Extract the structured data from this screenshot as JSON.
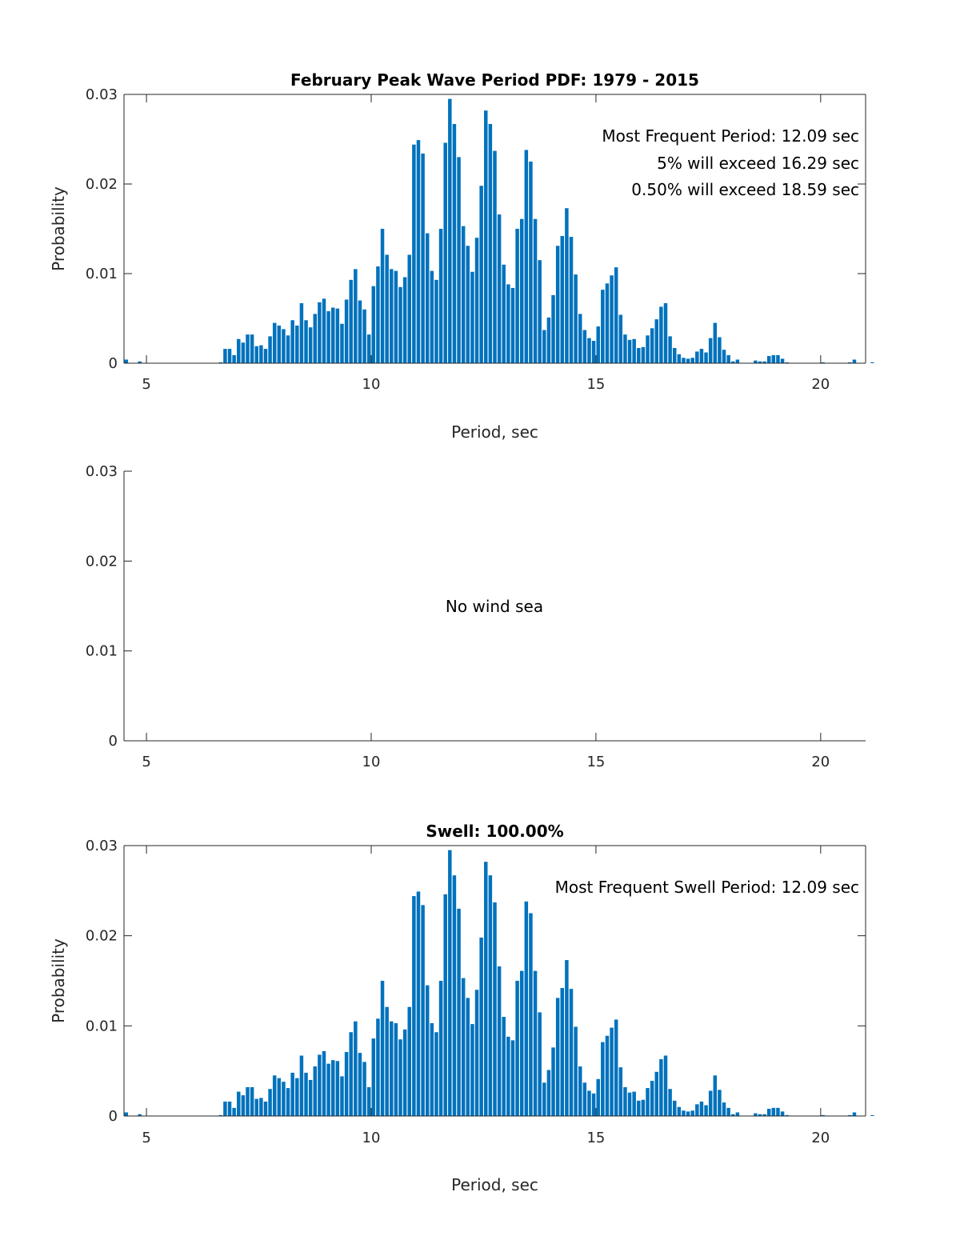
{
  "colors": {
    "bar": "#0072BD",
    "axis": "#262626",
    "background": "#ffffff"
  },
  "chart_data": [
    {
      "type": "bar",
      "title": "February Peak Wave Period PDF: 1979 - 2015",
      "xlabel": "Period, sec",
      "ylabel": "Probability",
      "xlim": [
        4.5,
        21
      ],
      "ylim": [
        0,
        0.03
      ],
      "xticks": [
        "5",
        "10",
        "15",
        "20"
      ],
      "yticks": [
        "0",
        "0.01",
        "0.02",
        "0.03"
      ],
      "bin_start": 4.55,
      "bin_width": 0.1,
      "values": [
        0.0004,
        0,
        0,
        0.0002,
        0,
        0,
        0,
        0,
        0,
        0,
        0,
        0,
        0,
        0,
        0,
        0,
        0,
        0,
        0,
        0,
        0,
        0.0001,
        0.0016,
        0.0016,
        0.0009,
        0.0027,
        0.0023,
        0.0032,
        0.0032,
        0.0019,
        0.002,
        0.0016,
        0.003,
        0.0045,
        0.0042,
        0.0038,
        0.0031,
        0.0048,
        0.0042,
        0.0067,
        0.0048,
        0.004,
        0.0055,
        0.0068,
        0.0072,
        0.0058,
        0.0062,
        0.0061,
        0.0044,
        0.0071,
        0.0093,
        0.0105,
        0.007,
        0.006,
        0.0032,
        0.0086,
        0.0108,
        0.015,
        0.0121,
        0.0105,
        0.0103,
        0.0085,
        0.0096,
        0.0121,
        0.0244,
        0.0249,
        0.0234,
        0.0145,
        0.0103,
        0.0093,
        0.015,
        0.0246,
        0.0295,
        0.0267,
        0.023,
        0.0153,
        0.0131,
        0.0102,
        0.014,
        0.0198,
        0.0282,
        0.0267,
        0.0237,
        0.0166,
        0.011,
        0.0088,
        0.0084,
        0.015,
        0.0161,
        0.0238,
        0.0225,
        0.0161,
        0.0115,
        0.0037,
        0.0051,
        0.0076,
        0.0131,
        0.0142,
        0.0173,
        0.0141,
        0.0099,
        0.0055,
        0.0037,
        0.0028,
        0.0025,
        0.0041,
        0.0082,
        0.0089,
        0.0098,
        0.0107,
        0.0054,
        0.0032,
        0.0026,
        0.0027,
        0.0017,
        0.0018,
        0.0031,
        0.0039,
        0.0049,
        0.0063,
        0.0067,
        0.003,
        0.0017,
        0.001,
        0.0006,
        0.0005,
        0.0006,
        0.0013,
        0.0016,
        0.0012,
        0.0028,
        0.0045,
        0.0029,
        0.0015,
        0.0009,
        0.0002,
        0.0004,
        0,
        0,
        0,
        0.0003,
        0.0002,
        0.0002,
        0.0008,
        0.0009,
        0.0009,
        0.0005,
        0.0001,
        0,
        0,
        0,
        0,
        0,
        0,
        0,
        0.0001,
        0,
        0,
        0,
        0,
        0,
        0.0001,
        0.0004,
        0,
        0,
        0,
        0.0001
      ],
      "annotations": [
        "Most Frequent Period: 12.09 sec",
        "5% will exceed 16.29 sec",
        "0.50% will exceed 18.59 sec"
      ]
    },
    {
      "type": "bar",
      "title": "",
      "xlabel": "",
      "ylabel": "",
      "xlim": [
        4.5,
        21
      ],
      "ylim": [
        0,
        0.03
      ],
      "xticks": [
        "5",
        "10",
        "15",
        "20"
      ],
      "yticks": [
        "0",
        "0.01",
        "0.02",
        "0.03"
      ],
      "values": [],
      "annotations": [
        "No wind sea"
      ]
    },
    {
      "type": "bar",
      "title": "Swell: 100.00%",
      "xlabel": "Period, sec",
      "ylabel": "Probability",
      "xlim": [
        4.5,
        21
      ],
      "ylim": [
        0,
        0.03
      ],
      "xticks": [
        "5",
        "10",
        "15",
        "20"
      ],
      "yticks": [
        "0",
        "0.01",
        "0.02",
        "0.03"
      ],
      "bin_start": 4.55,
      "bin_width": 0.1,
      "values": [
        0.0004,
        0,
        0,
        0.0002,
        0,
        0,
        0,
        0,
        0,
        0,
        0,
        0,
        0,
        0,
        0,
        0,
        0,
        0,
        0,
        0,
        0,
        0.0001,
        0.0016,
        0.0016,
        0.0009,
        0.0027,
        0.0023,
        0.0032,
        0.0032,
        0.0019,
        0.002,
        0.0016,
        0.003,
        0.0045,
        0.0042,
        0.0038,
        0.0031,
        0.0048,
        0.0042,
        0.0067,
        0.0048,
        0.004,
        0.0055,
        0.0068,
        0.0072,
        0.0058,
        0.0062,
        0.0061,
        0.0044,
        0.0071,
        0.0093,
        0.0105,
        0.007,
        0.006,
        0.0032,
        0.0086,
        0.0108,
        0.015,
        0.0121,
        0.0105,
        0.0103,
        0.0085,
        0.0096,
        0.0121,
        0.0244,
        0.0249,
        0.0234,
        0.0145,
        0.0103,
        0.0093,
        0.015,
        0.0246,
        0.0295,
        0.0267,
        0.023,
        0.0153,
        0.0131,
        0.0102,
        0.014,
        0.0198,
        0.0282,
        0.0267,
        0.0237,
        0.0166,
        0.011,
        0.0088,
        0.0084,
        0.015,
        0.0161,
        0.0238,
        0.0225,
        0.0161,
        0.0115,
        0.0037,
        0.0051,
        0.0076,
        0.0131,
        0.0142,
        0.0173,
        0.0141,
        0.0099,
        0.0055,
        0.0037,
        0.0028,
        0.0025,
        0.0041,
        0.0082,
        0.0089,
        0.0098,
        0.0107,
        0.0054,
        0.0032,
        0.0026,
        0.0027,
        0.0017,
        0.0018,
        0.0031,
        0.0039,
        0.0049,
        0.0063,
        0.0067,
        0.003,
        0.0017,
        0.001,
        0.0006,
        0.0005,
        0.0006,
        0.0013,
        0.0016,
        0.0012,
        0.0028,
        0.0045,
        0.0029,
        0.0015,
        0.0009,
        0.0002,
        0.0004,
        0,
        0,
        0,
        0.0003,
        0.0002,
        0.0002,
        0.0008,
        0.0009,
        0.0009,
        0.0005,
        0.0001,
        0,
        0,
        0,
        0,
        0,
        0,
        0,
        0.0001,
        0,
        0,
        0,
        0,
        0,
        0.0001,
        0.0004,
        0,
        0,
        0,
        0.0001
      ],
      "annotations": [
        "Most Frequent Swell Period: 12.09 sec"
      ]
    }
  ]
}
